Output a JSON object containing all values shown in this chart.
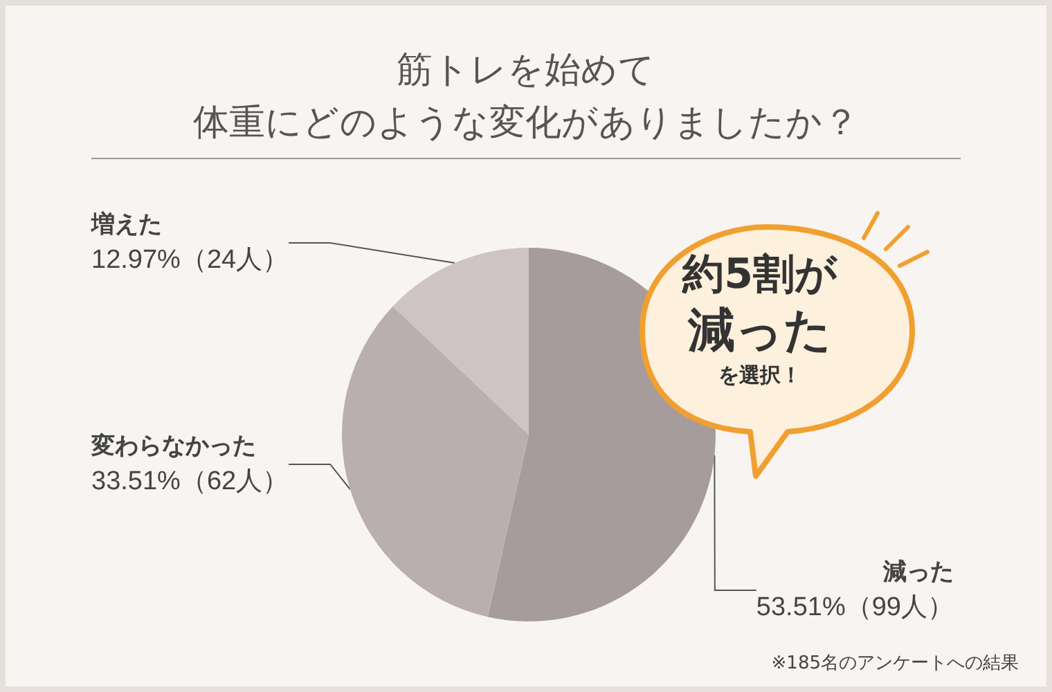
{
  "chart_data": {
    "type": "pie",
    "title": "筋トレを始めて",
    "subtitle": "体重にどのような変化がありましたか？",
    "categories": [
      "減った",
      "変わらなかった",
      "増えた"
    ],
    "values": [
      53.51,
      33.51,
      12.97
    ],
    "value_labels": [
      "53.51%（99人）",
      "33.51%（62人）",
      "12.97%（24人）"
    ],
    "colors": [
      "#a69c9b",
      "#b9afae",
      "#cdc4c3"
    ],
    "annotations": [
      "約5割が",
      "減った",
      "を選択！",
      "※185名のアンケートへの結果"
    ],
    "legend": false
  }
}
